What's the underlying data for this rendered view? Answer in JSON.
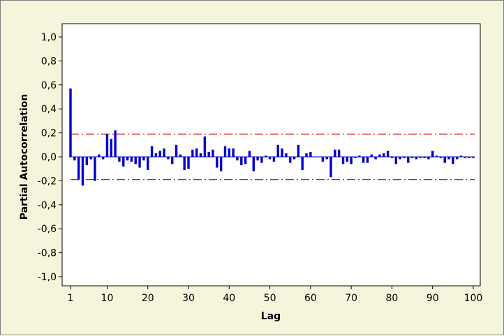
{
  "chart_data": {
    "type": "bar",
    "title": "",
    "xlabel": "Lag",
    "ylabel": "Partial Autocorrelation",
    "xlim": [
      1,
      100
    ],
    "ylim": [
      -1.0,
      1.0
    ],
    "x_ticks": [
      1,
      10,
      20,
      30,
      40,
      50,
      60,
      70,
      80,
      90,
      100
    ],
    "x_tick_labels": [
      "1",
      "10",
      "20",
      "30",
      "40",
      "50",
      "60",
      "70",
      "80",
      "90",
      "100"
    ],
    "y_ticks": [
      -1.0,
      -0.8,
      -0.6,
      -0.4,
      -0.2,
      0.0,
      0.2,
      0.4,
      0.6,
      0.8,
      1.0
    ],
    "y_tick_labels": [
      "-1,0",
      "-0,8",
      "-0,6",
      "-0,4",
      "-0,2",
      "0,0",
      "0,2",
      "0,4",
      "0,6",
      "0,8",
      "1,0"
    ],
    "grid": false,
    "confidence_limits": [
      0.19,
      -0.19
    ],
    "colors": {
      "bars": "#0000cc",
      "limits": "#cc0000",
      "background": "#f5f5dc"
    },
    "x": [
      1,
      2,
      3,
      4,
      5,
      6,
      7,
      8,
      9,
      10,
      11,
      12,
      13,
      14,
      15,
      16,
      17,
      18,
      19,
      20,
      21,
      22,
      23,
      24,
      25,
      26,
      27,
      28,
      29,
      30,
      31,
      32,
      33,
      34,
      35,
      36,
      37,
      38,
      39,
      40,
      41,
      42,
      43,
      44,
      45,
      46,
      47,
      48,
      49,
      50,
      51,
      52,
      53,
      54,
      55,
      56,
      57,
      58,
      59,
      60,
      61,
      62,
      63,
      64,
      65,
      66,
      67,
      68,
      69,
      70,
      71,
      72,
      73,
      74,
      75,
      76,
      77,
      78,
      79,
      80,
      81,
      82,
      83,
      84,
      85,
      86,
      87,
      88,
      89,
      90,
      91,
      92,
      93,
      94,
      95,
      96,
      97,
      98,
      99,
      100
    ],
    "values": [
      0.57,
      -0.03,
      -0.19,
      -0.24,
      -0.07,
      -0.02,
      -0.2,
      0.02,
      -0.02,
      0.19,
      0.15,
      0.22,
      -0.04,
      -0.08,
      -0.03,
      -0.04,
      -0.06,
      -0.09,
      -0.03,
      -0.11,
      0.09,
      0.03,
      0.05,
      0.07,
      -0.02,
      -0.06,
      0.1,
      0.02,
      -0.11,
      -0.1,
      0.06,
      0.07,
      0.03,
      0.17,
      0.04,
      0.06,
      -0.09,
      -0.12,
      0.09,
      0.07,
      0.07,
      -0.03,
      -0.07,
      -0.06,
      0.05,
      -0.12,
      -0.03,
      -0.05,
      0.01,
      -0.02,
      -0.04,
      0.1,
      0.07,
      0.03,
      -0.05,
      -0.02,
      0.1,
      -0.11,
      0.03,
      0.04,
      0.0,
      0.0,
      -0.04,
      -0.02,
      -0.17,
      0.06,
      0.06,
      -0.06,
      -0.04,
      -0.06,
      -0.01,
      0.01,
      -0.05,
      -0.05,
      0.02,
      -0.02,
      0.02,
      0.03,
      0.05,
      -0.01,
      -0.06,
      -0.02,
      -0.01,
      -0.05,
      -0.01,
      -0.02,
      -0.01,
      -0.01,
      -0.02,
      0.05,
      0.01,
      -0.01,
      -0.05,
      -0.02,
      -0.06,
      -0.02,
      0.01,
      -0.01,
      -0.01,
      -0.01
    ]
  }
}
